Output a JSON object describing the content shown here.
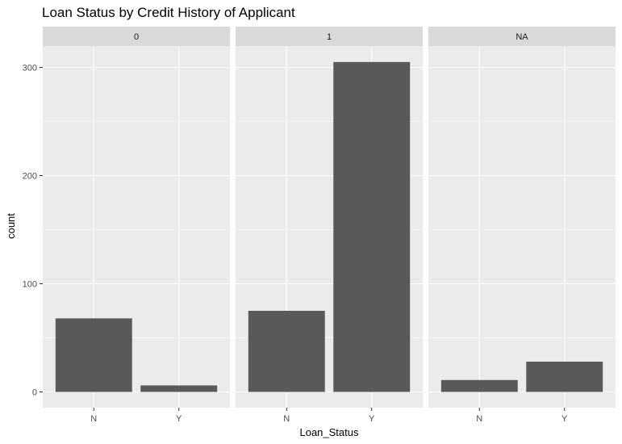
{
  "chart_data": {
    "type": "bar",
    "title": "Loan Status by Credit History of Applicant",
    "xlabel": "Loan_Status",
    "ylabel": "count",
    "ylim": [
      0,
      320
    ],
    "yticks": [
      0,
      100,
      200,
      300
    ],
    "categories": [
      "N",
      "Y"
    ],
    "facets": [
      {
        "label": "0",
        "values": [
          68,
          6
        ]
      },
      {
        "label": "1",
        "values": [
          75,
          305
        ]
      },
      {
        "label": "NA",
        "values": [
          11,
          28
        ]
      }
    ],
    "grid": true,
    "bar_color": "#595959",
    "panel_color": "#ebebeb",
    "strip_color": "#d9d9d9"
  }
}
